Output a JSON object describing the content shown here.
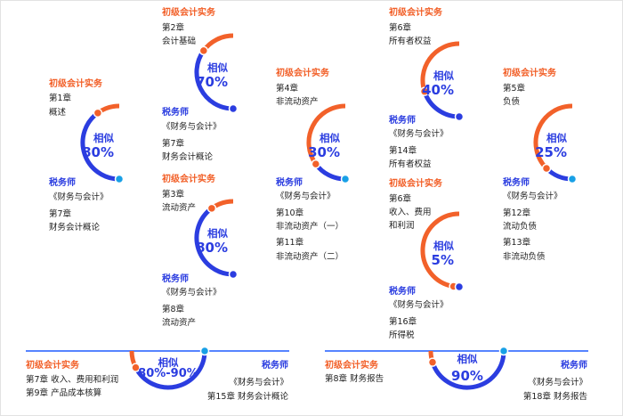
{
  "colors": {
    "orange": "#f2612a",
    "blue": "#2b3de0",
    "line": "#1f5bff",
    "light_blue_dot": "#18a0e6"
  },
  "cards": [
    {
      "similarity": 0.8,
      "similar_label": "相似",
      "percent": "80%",
      "top_title": "初级会计实务",
      "top_lines": [
        "第1章",
        "概述"
      ],
      "bottom_title": "税务师",
      "bottom_lines": [
        "《财务与会计》",
        "第7章",
        "财务会计概论"
      ]
    },
    {
      "similarity": 0.7,
      "similar_label": "相似",
      "percent": "70%",
      "top_title": "初级会计实务",
      "top_lines": [
        "第2章",
        "会计基础"
      ],
      "bottom_title": "税务师",
      "bottom_lines": [
        "《财务与会计》",
        "第7章",
        "财务会计概论"
      ]
    },
    {
      "similarity": 0.8,
      "similar_label": "相似",
      "percent": "80%",
      "top_title": "初级会计实务",
      "top_lines": [
        "第3章",
        "流动资产"
      ],
      "bottom_title": "税务师",
      "bottom_lines": [
        "《财务与会计》",
        "第8章",
        "流动资产"
      ]
    },
    {
      "similarity": 0.3,
      "similar_label": "相似",
      "percent": "30%",
      "top_title": "初级会计实务",
      "top_lines": [
        "第4章",
        "非流动资产"
      ],
      "bottom_title": "税务师",
      "bottom_lines": [
        "《财务与会计》",
        "第10章",
        "非流动资产（一）",
        "第11章",
        "非流动资产（二）"
      ]
    },
    {
      "similarity": 0.4,
      "similar_label": "相似",
      "percent": "40%",
      "top_title": "初级会计实务",
      "top_lines": [
        "第6章",
        "所有者权益"
      ],
      "bottom_title": "税务师",
      "bottom_lines": [
        "《财务与会计》",
        "第14章",
        "所有者权益"
      ]
    },
    {
      "similarity": 0.05,
      "similar_label": "相似",
      "percent": "5%",
      "top_title": "初级会计实务",
      "top_lines": [
        "第6章",
        "收入、费用",
        "和利润"
      ],
      "bottom_title": "税务师",
      "bottom_lines": [
        "《财务与会计》",
        "第16章",
        "所得税"
      ]
    },
    {
      "similarity": 0.25,
      "similar_label": "相似",
      "percent": "25%",
      "top_title": "初级会计实务",
      "top_lines": [
        "第5章",
        "负债"
      ],
      "bottom_title": "税务师",
      "bottom_lines": [
        "《财务与会计》",
        "第12章",
        "流动负债",
        "第13章",
        "非流动负债"
      ]
    }
  ],
  "wide_cards": [
    {
      "similarity": 0.85,
      "similar_label": "相似",
      "percent": "80%-90%",
      "left_title": "初级会计实务",
      "left_lines": [
        "第7章   收入、费用和利润",
        "第9章  产品成本核算"
      ],
      "right_title": "税务师",
      "right_lines": [
        "《财务与会计》",
        "第15章  财务会计概论"
      ]
    },
    {
      "similarity": 0.9,
      "similar_label": "相似",
      "percent": "90%",
      "left_title": "初级会计实务",
      "left_lines": [
        "第8章  财务报告"
      ],
      "right_title": "税务师",
      "right_lines": [
        "《财务与会计》",
        "第18章  财务报告"
      ]
    }
  ]
}
